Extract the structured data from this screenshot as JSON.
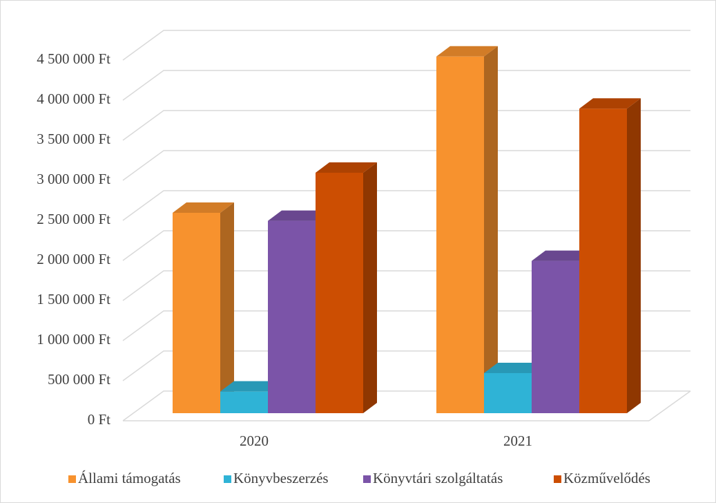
{
  "chart_data": {
    "type": "bar3d",
    "categories": [
      "2020",
      "2021"
    ],
    "series": [
      {
        "name": "Állami támogatás",
        "color": "#f7922e",
        "values": [
          2500000,
          4450000
        ]
      },
      {
        "name": "Könyvbeszerzés",
        "color": "#2fb3d6",
        "values": [
          270000,
          500000
        ]
      },
      {
        "name": "Könyvtári szolgáltatás",
        "color": "#7b54a8",
        "values": [
          2400000,
          1900000
        ]
      },
      {
        "name": "Közművelődés",
        "color": "#cc4e02",
        "values": [
          3000000,
          3800000
        ]
      }
    ],
    "ylim": [
      0,
      4500000
    ],
    "yticks": [
      {
        "value": 0,
        "label": "0 Ft"
      },
      {
        "value": 500000,
        "label": "500 000 Ft"
      },
      {
        "value": 1000000,
        "label": "1 000 000 Ft"
      },
      {
        "value": 1500000,
        "label": "1 500 000 Ft"
      },
      {
        "value": 2000000,
        "label": "2 000 000 Ft"
      },
      {
        "value": 2500000,
        "label": "2 500 000 Ft"
      },
      {
        "value": 3000000,
        "label": "3 000 000 Ft"
      },
      {
        "value": 3500000,
        "label": "3 500 000 Ft"
      },
      {
        "value": 4000000,
        "label": "4 000 000 Ft"
      },
      {
        "value": 4500000,
        "label": "4 500 000 Ft"
      }
    ],
    "grid": true,
    "legend": "bottom"
  }
}
